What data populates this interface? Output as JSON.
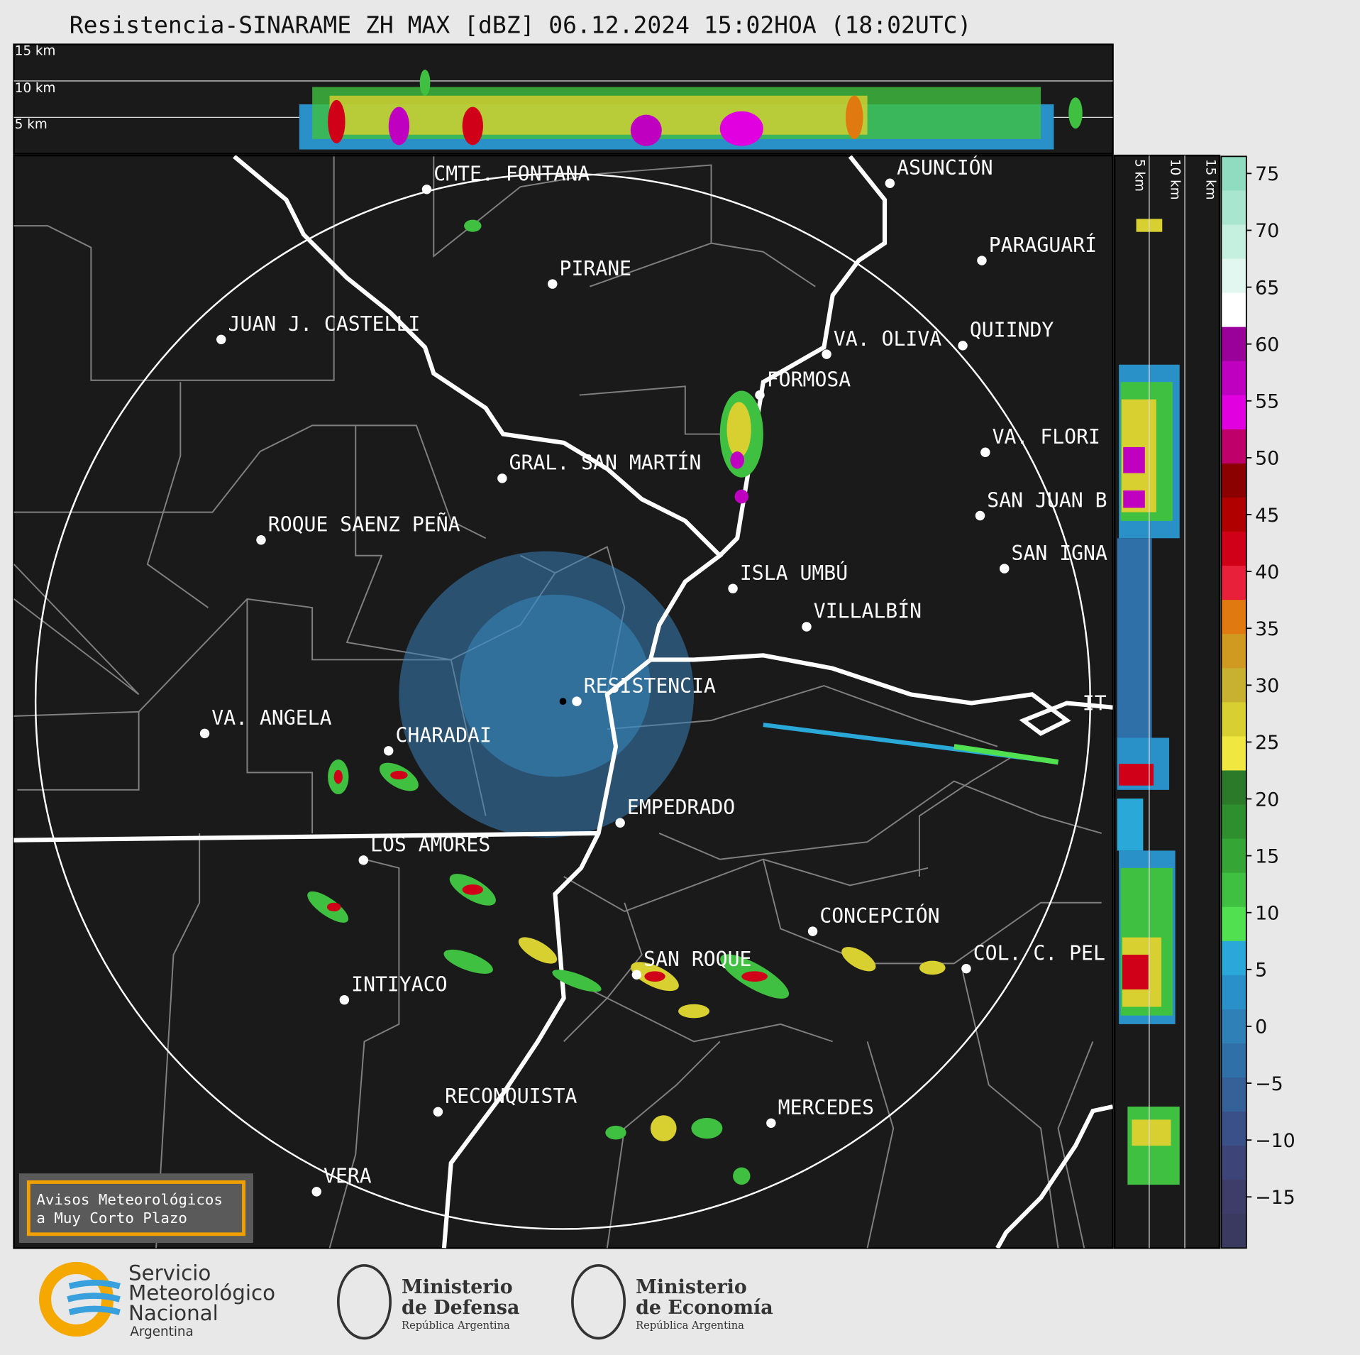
{
  "header": {
    "title": "Resistencia-SINARAME ZH MAX [dBZ] 06.12.2024 15:02HOA (18:02UTC)"
  },
  "profile_top": {
    "labels": [
      "15 km",
      "10 km",
      "5 km"
    ]
  },
  "profile_side": {
    "labels": [
      "5 km",
      "10 km",
      "15 km"
    ]
  },
  "map": {
    "cities": [
      "CMTE. FONTANA",
      "PIRANE",
      "JUAN J. CASTELLI",
      "ASUNCIÓN",
      "PARAGUARÍ",
      "VA. OLIVA",
      "QUIINDY",
      "FORMOSA",
      "VA. FLORI",
      "GRAL. SAN MARTÍN",
      "SAN JUAN B",
      "ROQUE SAENZ PEÑA",
      "SAN IGNA",
      "ISLA UMBÚ",
      "VILLALBÍN",
      "RESISTENCIA",
      "IT",
      "VA. ANGELA",
      "CHARADAI",
      "EMPEDRADO",
      "LOS AMORES",
      "CONCEPCIÓN",
      "COL. C. PEL",
      "SAN ROQUE",
      "INTIYACO",
      "RECONQUISTA",
      "MERCEDES",
      "VERA"
    ]
  },
  "colorbar": {
    "clim": [
      -19.5,
      76.5
    ],
    "ticks": [
      75,
      70,
      65,
      60,
      55,
      50,
      45,
      40,
      35,
      30,
      25,
      20,
      15,
      10,
      5,
      0,
      {
        "value": -5,
        "label": "−5"
      },
      {
        "value": -10,
        "label": "−10"
      },
      {
        "value": -15,
        "label": "−15"
      }
    ],
    "colors": [
      "#8fdcc0",
      "#a8e6cf",
      "#c5efdf",
      "#e2f7ef",
      "#ffffff",
      "#9a009a",
      "#c000c0",
      "#e000e0",
      "#c0006a",
      "#8b0000",
      "#b00000",
      "#d00018",
      "#e8203a",
      "#e07a10",
      "#d09a20",
      "#c8b030",
      "#d8d030",
      "#f0e840",
      "#2a7a2a",
      "#2e8f2e",
      "#35a535",
      "#40c040",
      "#50e050",
      "#2aa8d8",
      "#2a90c8",
      "#3080b8",
      "#3070a8",
      "#356098",
      "#3a5088",
      "#3c4478",
      "#3e3c68",
      "#3a3a60"
    ]
  },
  "warning_box": {
    "lines": [
      "Avisos Meteorológicos",
      "a Muy Corto Plazo"
    ]
  },
  "logos": {
    "smn": [
      "Servicio",
      "Meteorológico",
      "Nacional",
      "Argentina"
    ],
    "defensa": [
      "Ministerio",
      "de Defensa",
      "República Argentina"
    ],
    "economia": [
      "Ministerio",
      "de Economía",
      "República Argentina"
    ]
  }
}
